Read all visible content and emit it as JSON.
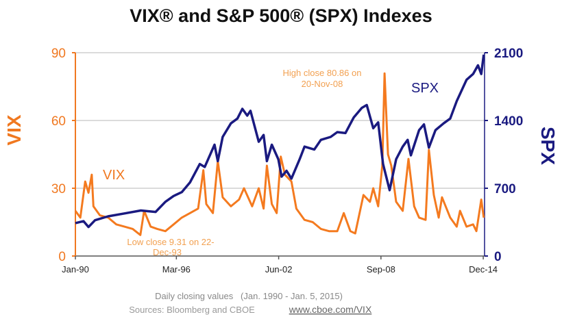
{
  "chart_data": {
    "type": "line",
    "title": "VIX® and S&P 500® (SPX) Indexes",
    "left_axis": {
      "label": "VIX",
      "ylim": [
        0,
        90
      ],
      "ticks": [
        "0",
        "30",
        "60",
        "90"
      ],
      "color": "#F07820"
    },
    "right_axis": {
      "label": "SPX",
      "ylim": [
        0,
        2100
      ],
      "ticks": [
        "0",
        "700",
        "1400",
        "2100"
      ],
      "color": "#1A1A80"
    },
    "x_ticks": [
      {
        "label": "Jan-90",
        "year": 1990.0
      },
      {
        "label": "Mar-96",
        "year": 1996.17
      },
      {
        "label": "Jun-02",
        "year": 2002.42
      },
      {
        "label": "Sep-08",
        "year": 2008.67
      },
      {
        "label": "Dec-14",
        "year": 2014.92
      }
    ],
    "xlim": [
      1990.0,
      2015.0
    ],
    "grid": true,
    "series": [
      {
        "name": "VIX",
        "axis": "left",
        "color": "#F47A1F",
        "points": [
          [
            1990.0,
            20
          ],
          [
            1990.3,
            17
          ],
          [
            1990.6,
            33
          ],
          [
            1990.8,
            28
          ],
          [
            1991.0,
            36
          ],
          [
            1991.1,
            22
          ],
          [
            1991.5,
            18
          ],
          [
            1992.0,
            17
          ],
          [
            1992.5,
            14
          ],
          [
            1993.0,
            13
          ],
          [
            1993.5,
            12
          ],
          [
            1993.97,
            9.31
          ],
          [
            1994.2,
            20
          ],
          [
            1994.6,
            13
          ],
          [
            1995.0,
            12
          ],
          [
            1995.5,
            11
          ],
          [
            1996.0,
            14
          ],
          [
            1996.5,
            17
          ],
          [
            1997.0,
            19
          ],
          [
            1997.5,
            21
          ],
          [
            1997.82,
            38
          ],
          [
            1998.0,
            23
          ],
          [
            1998.4,
            19
          ],
          [
            1998.7,
            42
          ],
          [
            1999.0,
            26
          ],
          [
            1999.5,
            22
          ],
          [
            2000.0,
            25
          ],
          [
            2000.3,
            30
          ],
          [
            2000.8,
            22
          ],
          [
            2001.2,
            30
          ],
          [
            2001.5,
            21
          ],
          [
            2001.7,
            40
          ],
          [
            2002.0,
            23
          ],
          [
            2002.3,
            19
          ],
          [
            2002.55,
            44
          ],
          [
            2002.8,
            36
          ],
          [
            2003.2,
            33
          ],
          [
            2003.5,
            21
          ],
          [
            2004.0,
            16
          ],
          [
            2004.5,
            15
          ],
          [
            2005.0,
            12
          ],
          [
            2005.5,
            11
          ],
          [
            2006.0,
            11
          ],
          [
            2006.4,
            19
          ],
          [
            2006.8,
            11
          ],
          [
            2007.1,
            10
          ],
          [
            2007.6,
            27
          ],
          [
            2008.0,
            24
          ],
          [
            2008.2,
            30
          ],
          [
            2008.5,
            22
          ],
          [
            2008.75,
            40
          ],
          [
            2008.89,
            80.86
          ],
          [
            2009.1,
            45
          ],
          [
            2009.3,
            40
          ],
          [
            2009.6,
            24
          ],
          [
            2010.0,
            20
          ],
          [
            2010.35,
            43
          ],
          [
            2010.7,
            22
          ],
          [
            2011.0,
            17
          ],
          [
            2011.4,
            16
          ],
          [
            2011.6,
            47
          ],
          [
            2011.9,
            27
          ],
          [
            2012.2,
            17
          ],
          [
            2012.4,
            26
          ],
          [
            2012.9,
            17
          ],
          [
            2013.3,
            13
          ],
          [
            2013.5,
            20
          ],
          [
            2013.9,
            13
          ],
          [
            2014.3,
            14
          ],
          [
            2014.5,
            11
          ],
          [
            2014.8,
            25
          ],
          [
            2014.95,
            17
          ]
        ]
      },
      {
        "name": "SPX",
        "axis": "right",
        "color": "#1A1A80",
        "points": [
          [
            1990.0,
            340
          ],
          [
            1990.5,
            360
          ],
          [
            1990.8,
            300
          ],
          [
            1991.2,
            370
          ],
          [
            1992.0,
            410
          ],
          [
            1993.0,
            440
          ],
          [
            1994.0,
            470
          ],
          [
            1994.9,
            455
          ],
          [
            1995.5,
            560
          ],
          [
            1996.0,
            620
          ],
          [
            1996.5,
            660
          ],
          [
            1997.0,
            760
          ],
          [
            1997.6,
            950
          ],
          [
            1997.9,
            920
          ],
          [
            1998.5,
            1150
          ],
          [
            1998.7,
            980
          ],
          [
            1999.0,
            1230
          ],
          [
            1999.5,
            1370
          ],
          [
            1999.9,
            1420
          ],
          [
            2000.2,
            1520
          ],
          [
            2000.5,
            1450
          ],
          [
            2000.7,
            1500
          ],
          [
            2001.2,
            1180
          ],
          [
            2001.5,
            1250
          ],
          [
            2001.7,
            980
          ],
          [
            2002.0,
            1150
          ],
          [
            2002.4,
            1000
          ],
          [
            2002.6,
            820
          ],
          [
            2002.9,
            880
          ],
          [
            2003.2,
            800
          ],
          [
            2003.7,
            1000
          ],
          [
            2004.0,
            1130
          ],
          [
            2004.6,
            1100
          ],
          [
            2005.0,
            1200
          ],
          [
            2005.6,
            1230
          ],
          [
            2006.0,
            1280
          ],
          [
            2006.5,
            1270
          ],
          [
            2007.0,
            1430
          ],
          [
            2007.5,
            1530
          ],
          [
            2007.8,
            1560
          ],
          [
            2008.2,
            1320
          ],
          [
            2008.5,
            1380
          ],
          [
            2008.8,
            950
          ],
          [
            2009.2,
            680
          ],
          [
            2009.6,
            1000
          ],
          [
            2010.0,
            1130
          ],
          [
            2010.3,
            1200
          ],
          [
            2010.5,
            1040
          ],
          [
            2011.0,
            1300
          ],
          [
            2011.3,
            1360
          ],
          [
            2011.6,
            1120
          ],
          [
            2012.0,
            1300
          ],
          [
            2012.5,
            1370
          ],
          [
            2012.9,
            1420
          ],
          [
            2013.3,
            1600
          ],
          [
            2013.9,
            1820
          ],
          [
            2014.3,
            1880
          ],
          [
            2014.6,
            1970
          ],
          [
            2014.8,
            1880
          ],
          [
            2014.95,
            2080
          ]
        ]
      }
    ],
    "annotations": [
      {
        "text_lines": [
          "High close 80.86 on",
          "20-Nov-08"
        ],
        "color": "#F2A050"
      },
      {
        "text_lines": [
          "Low close 9.31 on 22-",
          "Dec-93"
        ],
        "color": "#F2A050"
      }
    ],
    "series_labels": [
      "VIX",
      "SPX"
    ]
  },
  "footer": {
    "note": "Daily closing values   (Jan. 1990 - Jan. 5, 2015)",
    "sources": "Sources: Bloomberg and CBOE",
    "link": "www.cboe.com/VIX"
  }
}
